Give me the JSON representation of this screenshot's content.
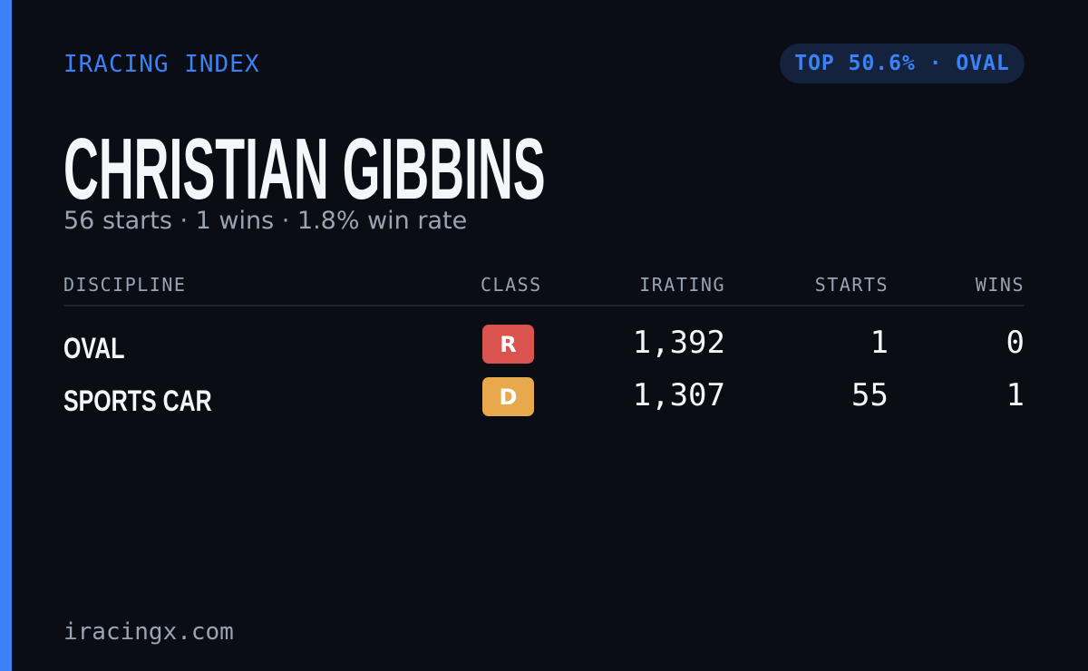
{
  "header": {
    "brand": "IRACING INDEX",
    "badge": "TOP 50.6% · OVAL"
  },
  "title": "CHRISTIAN GIBBINS",
  "subtitle": "56 starts · 1 wins · 1.8% win rate",
  "table": {
    "columns": [
      "DISCIPLINE",
      "CLASS",
      "IRATING",
      "STARTS",
      "WINS"
    ],
    "rows": [
      [
        "OVAL",
        "R",
        "1,392",
        "1",
        "0"
      ],
      [
        "SPORTS CAR",
        "D",
        "1,307",
        "55",
        "1"
      ]
    ]
  },
  "footer": "iracingx.com"
}
